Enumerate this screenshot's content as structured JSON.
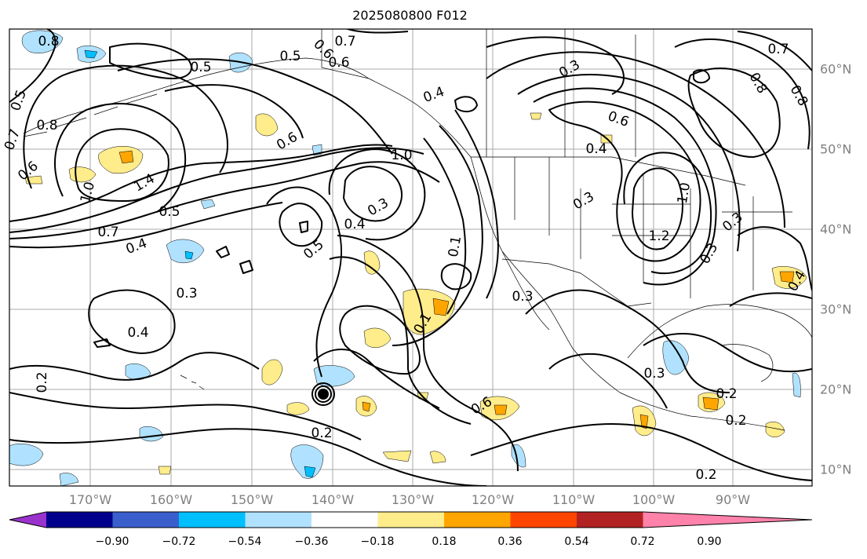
{
  "title": "2025080800 F012",
  "map": {
    "longitude_labels": [
      "170°W",
      "160°W",
      "150°W",
      "140°W",
      "130°W",
      "120°W",
      "110°W",
      "100°W",
      "90°W"
    ],
    "latitude_labels": [
      "60°N",
      "50°N",
      "40°N",
      "30°N",
      "20°N",
      "10°N"
    ],
    "contour_labels": [
      {
        "text": "0.8"
      },
      {
        "text": "0.5"
      },
      {
        "text": "0.5"
      },
      {
        "text": "0.7"
      },
      {
        "text": "0.6"
      },
      {
        "text": "0.6"
      },
      {
        "text": "0.4"
      },
      {
        "text": "0.3"
      },
      {
        "text": "0.7"
      },
      {
        "text": "0.8"
      },
      {
        "text": "0.5"
      },
      {
        "text": "0.7"
      },
      {
        "text": "0.6"
      },
      {
        "text": "0.8"
      },
      {
        "text": "0.8"
      },
      {
        "text": "0.6"
      },
      {
        "text": "0.4"
      },
      {
        "text": "0.6"
      },
      {
        "text": "1.0"
      },
      {
        "text": "1.0"
      },
      {
        "text": "1.4"
      },
      {
        "text": "0.5"
      },
      {
        "text": "0.7"
      },
      {
        "text": "0.4"
      },
      {
        "text": "0.3"
      },
      {
        "text": "0.4"
      },
      {
        "text": "0.5"
      },
      {
        "text": "0.3"
      },
      {
        "text": "1.2"
      },
      {
        "text": "1.0"
      },
      {
        "text": "0.3"
      },
      {
        "text": "0.3"
      },
      {
        "text": "0.3"
      },
      {
        "text": "0.4"
      },
      {
        "text": "0.3"
      },
      {
        "text": "0.4"
      },
      {
        "text": "0.2"
      },
      {
        "text": "0.2"
      },
      {
        "text": "0.3"
      },
      {
        "text": "0.2"
      },
      {
        "text": "0.2"
      },
      {
        "text": "0.2"
      },
      {
        "text": "0.6"
      },
      {
        "text": "0.1"
      },
      {
        "text": "0.1"
      }
    ]
  },
  "colorbar": {
    "tick_labels": [
      "−0.90",
      "−0.72",
      "−0.54",
      "−0.36",
      "−0.18",
      "0.18",
      "0.36",
      "0.54",
      "0.72",
      "0.90"
    ],
    "colors": [
      "#9a32cd",
      "#00008b",
      "#3a5fcd",
      "#00bfff",
      "#b0e2ff",
      "#ffffff",
      "#ffec8b",
      "#ffa500",
      "#ff4500",
      "#b22222",
      "#ff82ab"
    ]
  },
  "colors": {
    "positive_light": "#ffec8b",
    "positive_medium": "#ffa500",
    "negative_light": "#b0e2ff",
    "negative_medium": "#00bfff",
    "grid": "#a9a9a9",
    "contour": "#000000"
  }
}
